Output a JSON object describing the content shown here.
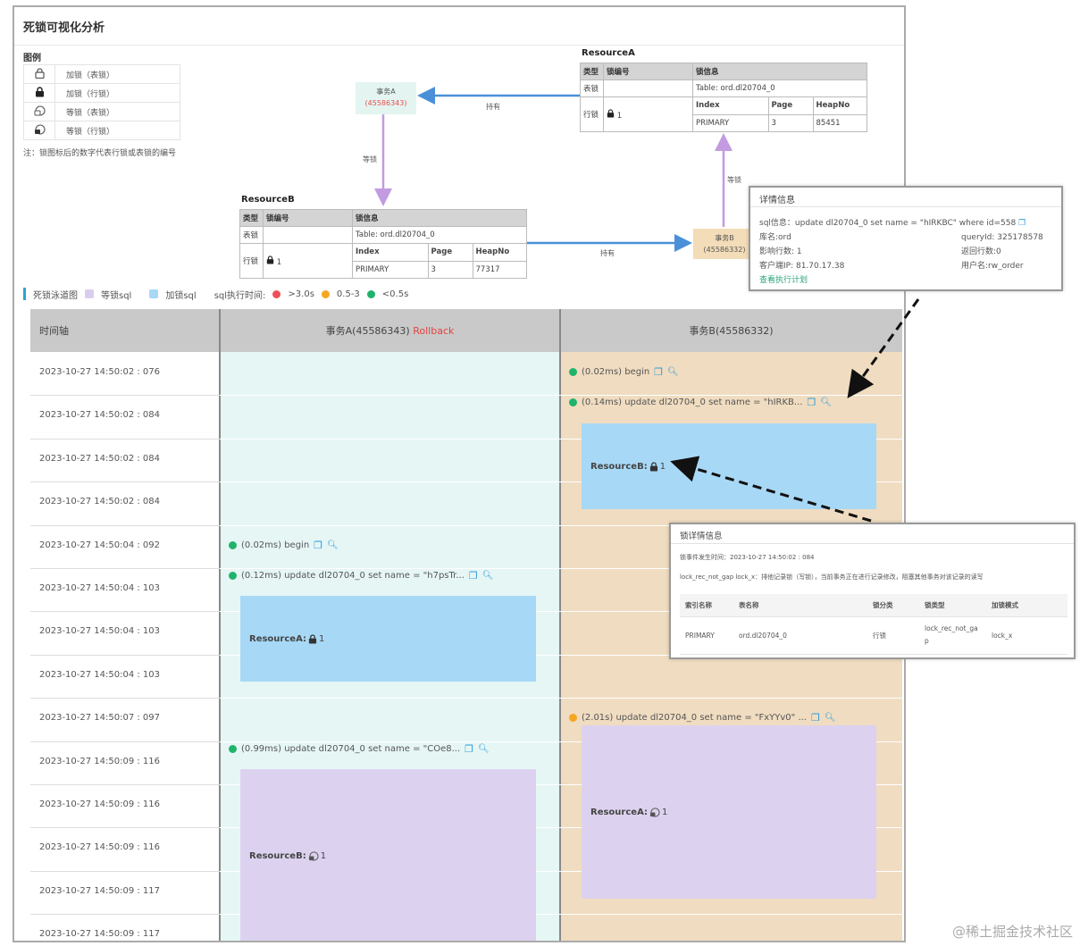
{
  "page": {
    "title": "死锁可视化分析"
  },
  "legend": {
    "title": "图例",
    "items": [
      {
        "icon": "unlock-icon",
        "label": "加锁（表锁）"
      },
      {
        "icon": "lock-icon",
        "label": "加锁（行锁）"
      },
      {
        "icon": "wait-unlock-icon",
        "label": "等锁（表锁）"
      },
      {
        "icon": "wait-lock-icon",
        "label": "等锁（行锁）"
      }
    ],
    "note": "注：锁图标后的数字代表行锁或表锁的编号"
  },
  "resourceA": {
    "title": "ResourceA",
    "headers": [
      "类型",
      "锁编号",
      "锁信息"
    ],
    "table_row": {
      "type": "表锁",
      "num": "",
      "info": "Table: ord.dl20704_0"
    },
    "row_row": {
      "type": "行锁",
      "num": "1"
    },
    "inner_headers": [
      "Index",
      "Page",
      "HeapNo"
    ],
    "inner_values": [
      "PRIMARY",
      "3",
      "85451"
    ]
  },
  "resourceB": {
    "title": "ResourceB",
    "headers": [
      "类型",
      "锁编号",
      "锁信息"
    ],
    "table_row": {
      "type": "表锁",
      "num": "",
      "info": "Table: ord.dl20704_0"
    },
    "row_row": {
      "type": "行锁",
      "num": "1"
    },
    "inner_headers": [
      "Index",
      "Page",
      "HeapNo"
    ],
    "inner_values": [
      "PRIMARY",
      "3",
      "77317"
    ]
  },
  "graph": {
    "txA": {
      "name": "事务A",
      "id": "(45586343)"
    },
    "txB": {
      "name": "事务B",
      "id": "(45586332)"
    },
    "edge_hold_a": "持有",
    "edge_wait_a": "等锁",
    "edge_hold_b": "持有",
    "edge_wait_b": "等锁"
  },
  "detail_popup": {
    "title": "详情信息",
    "sql": "sql信息：update dl20704_0 set name = \"hIRKBC\" where id=558",
    "db": "库名:ord",
    "query_id": "queryId: 325178578",
    "affected": "影响行数: 1",
    "returned": "返回行数:0",
    "client_ip": "客户端IP: 81.70.17.38",
    "user": "用户名:rw_order",
    "link": "查看执行计划"
  },
  "toolbar": {
    "title": "死锁泳道图",
    "wait_sql": "等锁sql",
    "lock_sql": "加锁sql",
    "time_label": "sql执行时间:",
    "t1": ">3.0s",
    "t2": "0.5-3",
    "t3": "<0.5s",
    "colors": {
      "wait": "#d9cdef",
      "lock": "#a7d8f6",
      "red": "#f0505a",
      "orange": "#f5a623",
      "green": "#20b36b"
    }
  },
  "swimlane": {
    "headers": {
      "time": "时间轴",
      "a": "事务A(45586343)",
      "a_status": "Rollback",
      "b": "事务B(45586332)"
    },
    "timestamps": [
      "2023-10-27 14:50:02 : 076",
      "2023-10-27 14:50:02 : 084",
      "2023-10-27 14:50:02 : 084",
      "2023-10-27 14:50:02 : 084",
      "2023-10-27 14:50:04 : 092",
      "2023-10-27 14:50:04 : 103",
      "2023-10-27 14:50:04 : 103",
      "2023-10-27 14:50:04 : 103",
      "2023-10-27 14:50:07 : 097",
      "2023-10-27 14:50:09 : 116",
      "2023-10-27 14:50:09 : 116",
      "2023-10-27 14:50:09 : 116",
      "2023-10-27 14:50:09 : 117",
      "2023-10-27 14:50:09 : 117"
    ],
    "events": [
      {
        "col": "b",
        "text": "(0.02ms) begin",
        "dot": "green"
      },
      {
        "col": "b",
        "text": "(0.14ms) update dl20704_0 set name = \"hIRKB...",
        "dot": "green"
      },
      {
        "col": "a",
        "text": "(0.02ms) begin",
        "dot": "green"
      },
      {
        "col": "a",
        "text": "(0.12ms) update dl20704_0 set name = \"h7psTr...",
        "dot": "green"
      },
      {
        "col": "b",
        "text": "(2.01s) update dl20704_0 set name = \"FxYYv0\" ...",
        "dot": "orange"
      },
      {
        "col": "a",
        "text": "(0.99ms) update dl20704_0 set name = \"COe8...",
        "dot": "green"
      }
    ],
    "blocks": [
      {
        "label": "ResourceB:",
        "num": "1",
        "kind": "lock"
      },
      {
        "label": "ResourceA:",
        "num": "1",
        "kind": "lock"
      },
      {
        "label": "ResourceA:",
        "num": "1",
        "kind": "wait"
      },
      {
        "label": "ResourceB:",
        "num": "1",
        "kind": "wait"
      }
    ]
  },
  "lock_popup": {
    "title": "锁详情信息",
    "time": "锁事件发生时间：2023-10-27 14:50:02 : 084",
    "desc": "lock_rec_not_gap lock_x：排他记录锁（写锁），当前事务正在进行记录修改，阻塞其他事务对该记录的读写",
    "headers": [
      "索引名称",
      "表名称",
      "锁分类",
      "锁类型",
      "加锁模式"
    ],
    "row": [
      "PRIMARY",
      "ord.dl20704_0",
      "行锁",
      "lock_rec_not_gap",
      "lock_x"
    ]
  },
  "watermark": "@稀土掘金技术社区"
}
